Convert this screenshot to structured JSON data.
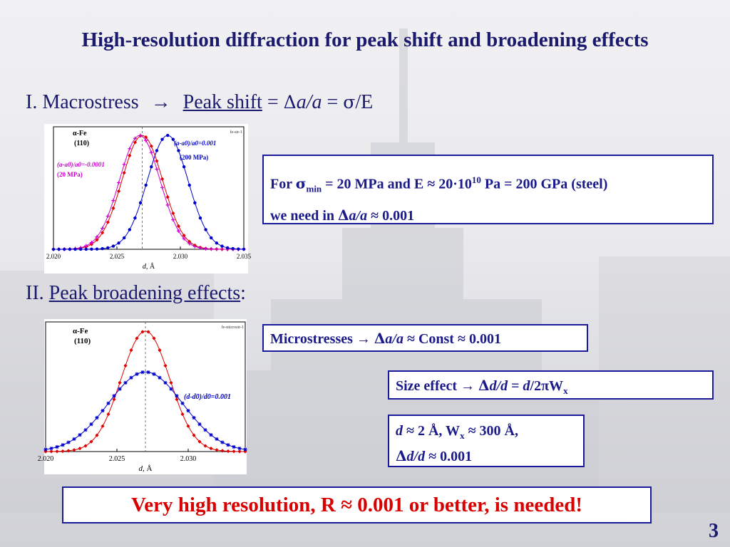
{
  "slide": {
    "title": "High-resolution diffraction for peak shift and broadening effects",
    "page_number": "3"
  },
  "section1": {
    "prefix": "I. Macrostress",
    "arrow": "→",
    "link": "Peak shift",
    "formula_eq": "= ",
    "delta": "Δ",
    "a_over_a": "a/a",
    "eq2": " = ",
    "sigma": "σ",
    "over_e": "/E"
  },
  "box1": {
    "for": "For ",
    "sigma": "σ",
    "sub_min": "min",
    "line1_rest_a": " = 20 MPa and E ≈ 20·10",
    "sup_10": "10",
    "line1_rest_b": " Pa = 200 GPa  (steel)",
    "line2_a": "we need in ",
    "delta": "Δ",
    "a_over_a": "a/a",
    "line2_b": " ≈ 0.001"
  },
  "section2": {
    "prefix": "II. ",
    "link": "Peak broadening effects",
    "colon": ":"
  },
  "box_micro": {
    "label": "Microstresses  → ",
    "delta": "Δ",
    "a_over_a": "a/a",
    "rest": " ≈ Const ≈ 0.001"
  },
  "box_size": {
    "label": "Size effect  → ",
    "delta": "Δ",
    "d_over_d": "d/d",
    "eq": " = ",
    "d_italic": "d",
    "rest": "/2πW",
    "sub_x": "x"
  },
  "box_values": {
    "d": "d",
    "l1_a": " ≈ 2 Å,   W",
    "sub_x": "x",
    "l1_b": " ≈ 300 Å,",
    "delta": "Δ",
    "d_over_d": "d/d",
    "l2_b": " ≈ 0.001"
  },
  "conclusion": {
    "text": "Very high resolution, R ≈ 0.001 or better, is needed!"
  },
  "colors": {
    "navy": "#1a1a6e",
    "box_border": "#1a1a9a",
    "red": "#d80000",
    "blue_series": "#0000cc",
    "red_series": "#e00000",
    "magenta_series": "#cc00cc"
  },
  "chart_data": [
    {
      "type": "line",
      "tag": "fe-str-1",
      "phase_label": "α-Fe",
      "reflection": "(110)",
      "xlim": [
        2.02,
        2.035
      ],
      "x_ticks": [
        "2.020",
        "2.025",
        "2.030",
        "2.035"
      ],
      "xlabel_italic": "d",
      "xlabel_unit": ", Å",
      "reference_d": 2.027,
      "annotation_pos": "(a-a0)/a0=0.001",
      "annotation_pos_stress": "(200 MPa)",
      "annotation_neg": "(a-a0)/a0=-0.0001",
      "annotation_neg_stress": "(20 MPa)",
      "series": [
        {
          "color": "#e00000",
          "marker": "diamond",
          "center": 2.027,
          "sigma": 0.0016,
          "amplitude": 1.0
        },
        {
          "color": "#cc00cc",
          "marker": "plus",
          "center": 2.0268,
          "sigma": 0.0016,
          "amplitude": 1.0
        },
        {
          "color": "#0000cc",
          "marker": "circle",
          "center": 2.029,
          "sigma": 0.0016,
          "amplitude": 1.0
        }
      ]
    },
    {
      "type": "line",
      "tag": "fe-microstr-1",
      "phase_label": "α-Fe",
      "reflection": "(110)",
      "xlim": [
        2.02,
        2.034
      ],
      "x_ticks": [
        "2.020",
        "2.025",
        "2.030"
      ],
      "xlabel_italic": "d",
      "xlabel_unit": ", Å",
      "reference_d": 2.027,
      "annotation": "(d-d0)/d0=0.001",
      "series": [
        {
          "color": "#e00000",
          "marker": "diamond",
          "center": 2.027,
          "sigma": 0.0017,
          "amplitude": 1.0
        },
        {
          "color": "#0000cc",
          "marker": "star",
          "center": 2.027,
          "sigma": 0.0026,
          "amplitude": 0.66
        }
      ]
    }
  ]
}
